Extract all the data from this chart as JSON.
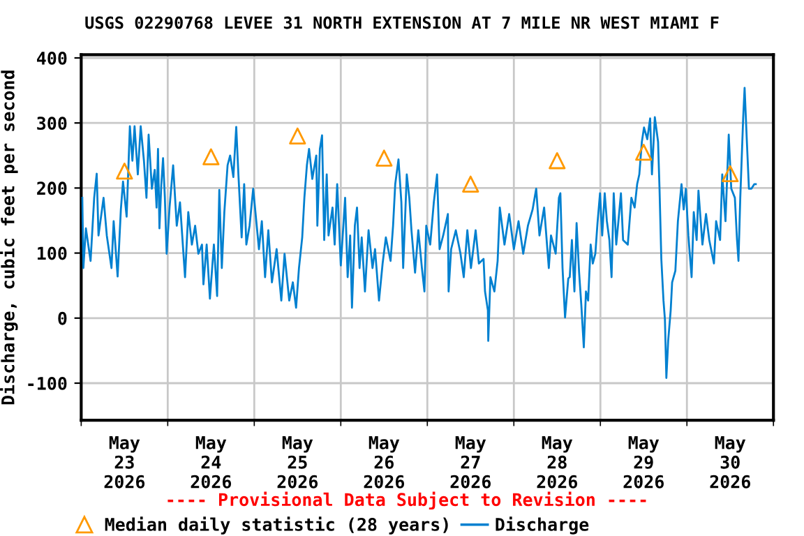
{
  "chart_data": {
    "type": "line",
    "title": "USGS 02290768 LEVEE 31 NORTH EXTENSION AT 7 MILE NR WEST MIAMI F",
    "ylabel": "Discharge, cubic feet per second",
    "annotations": [
      "---- Provisional Data Subject to Revision ----"
    ],
    "xlim": [
      "2026-05-23",
      "2026-05-31"
    ],
    "ylim": [
      -157,
      405
    ],
    "yticks": [
      -100,
      0,
      100,
      200,
      300,
      400
    ],
    "xticks": [
      {
        "value": "2026-05-23",
        "label": null
      },
      {
        "value": "2026-05-23T12:00",
        "label": "May\n23\n2026"
      },
      {
        "value": "2026-05-24",
        "label": null
      },
      {
        "value": "2026-05-24T12:00",
        "label": "May\n24\n2026"
      },
      {
        "value": "2026-05-25",
        "label": null
      },
      {
        "value": "2026-05-25T12:00",
        "label": "May\n25\n2026"
      },
      {
        "value": "2026-05-26",
        "label": null
      },
      {
        "value": "2026-05-26T12:00",
        "label": "May\n26\n2026"
      },
      {
        "value": "2026-05-27",
        "label": null
      },
      {
        "value": "2026-05-27T12:00",
        "label": "May\n27\n2026"
      },
      {
        "value": "2026-05-28",
        "label": null
      },
      {
        "value": "2026-05-28T12:00",
        "label": "May\n28\n2026"
      },
      {
        "value": "2026-05-29",
        "label": null
      },
      {
        "value": "2026-05-29T12:00",
        "label": "May\n29\n2026"
      },
      {
        "value": "2026-05-30",
        "label": null
      },
      {
        "value": "2026-05-30T12:00",
        "label": "May\n30\n2026"
      },
      {
        "value": "2026-05-31",
        "label": null
      }
    ],
    "grid": true,
    "legend": "bottom",
    "series": [
      {
        "name": "Median daily statistic (28 years)",
        "type": "scatter",
        "marker": "triangle",
        "color": "#ff9900",
        "x": [
          "2026-05-23T12:00",
          "2026-05-24T12:00",
          "2026-05-25T12:00",
          "2026-05-26T12:00",
          "2026-05-27T12:00",
          "2026-05-28T12:00",
          "2026-05-29T12:00",
          "2026-05-30T12:00"
        ],
        "values": [
          226,
          248,
          280,
          246,
          206,
          242,
          255,
          222
        ]
      },
      {
        "name": "Discharge",
        "color": "#0080d0",
        "x": [
          "2026-05-23T00:18",
          "2026-05-23T00:36",
          "2026-05-23T01:18",
          "2026-05-23T02:36",
          "2026-05-23T03:36",
          "2026-05-23T04:18",
          "2026-05-23T04:48",
          "2026-05-23T06:12",
          "2026-05-23T07:06",
          "2026-05-23T08:24",
          "2026-05-23T09:00",
          "2026-05-23T10:06",
          "2026-05-23T11:00",
          "2026-05-23T11:36",
          "2026-05-23T12:36",
          "2026-05-23T13:30",
          "2026-05-23T14:12",
          "2026-05-23T14:48",
          "2026-05-23T15:42",
          "2026-05-23T16:30",
          "2026-05-23T17:24",
          "2026-05-23T18:06",
          "2026-05-23T18:42",
          "2026-05-23T19:36",
          "2026-05-23T20:24",
          "2026-05-23T20:54",
          "2026-05-23T21:18",
          "2026-05-23T21:42",
          "2026-05-23T22:12",
          "2026-05-23T22:42",
          "2026-05-23T23:12",
          "2026-05-23T23:42",
          "2026-05-24T00:30",
          "2026-05-24T01:30",
          "2026-05-24T02:30",
          "2026-05-24T03:24",
          "2026-05-24T04:06",
          "2026-05-24T04:48",
          "2026-05-24T05:42",
          "2026-05-24T06:42",
          "2026-05-24T07:36",
          "2026-05-24T08:30",
          "2026-05-24T09:30",
          "2026-05-24T09:54",
          "2026-05-24T10:48",
          "2026-05-24T11:42",
          "2026-05-24T12:48",
          "2026-05-24T13:42",
          "2026-05-24T14:18",
          "2026-05-24T15:00",
          "2026-05-24T15:42",
          "2026-05-24T16:36",
          "2026-05-24T17:18",
          "2026-05-24T18:12",
          "2026-05-24T19:00",
          "2026-05-24T19:36",
          "2026-05-24T20:30",
          "2026-05-24T21:12",
          "2026-05-24T21:48",
          "2026-05-24T22:42",
          "2026-05-24T23:42",
          "2026-05-25T01:18",
          "2026-05-25T02:06",
          "2026-05-25T03:00",
          "2026-05-25T03:54",
          "2026-05-25T04:54",
          "2026-05-25T06:12",
          "2026-05-25T07:30",
          "2026-05-25T08:24",
          "2026-05-25T09:42",
          "2026-05-25T10:42",
          "2026-05-25T11:36",
          "2026-05-25T12:24",
          "2026-05-25T13:18",
          "2026-05-25T13:54",
          "2026-05-25T14:36",
          "2026-05-25T15:12",
          "2026-05-25T16:06",
          "2026-05-25T17:12",
          "2026-05-25T17:30",
          "2026-05-25T18:12",
          "2026-05-25T18:48",
          "2026-05-25T19:24",
          "2026-05-25T20:06",
          "2026-05-25T20:36",
          "2026-05-25T21:42",
          "2026-05-25T22:18",
          "2026-05-25T23:00",
          "2026-05-26T00:00",
          "2026-05-26T01:12",
          "2026-05-26T01:54",
          "2026-05-26T02:36",
          "2026-05-26T03:06",
          "2026-05-26T03:54",
          "2026-05-26T04:30",
          "2026-05-26T05:12",
          "2026-05-26T05:48",
          "2026-05-26T06:42",
          "2026-05-26T07:42",
          "2026-05-26T08:48",
          "2026-05-26T09:30",
          "2026-05-26T10:36",
          "2026-05-26T11:36",
          "2026-05-26T12:30",
          "2026-05-26T13:48",
          "2026-05-26T14:30",
          "2026-05-26T15:06",
          "2026-05-26T16:00",
          "2026-05-26T16:48",
          "2026-05-26T17:18",
          "2026-05-26T18:18",
          "2026-05-26T19:00",
          "2026-05-26T19:36",
          "2026-05-26T20:36",
          "2026-05-26T21:30",
          "2026-05-26T22:30",
          "2026-05-26T23:12",
          "2026-05-26T23:42",
          "2026-05-27T00:48",
          "2026-05-27T01:48",
          "2026-05-27T02:42",
          "2026-05-27T03:24",
          "2026-05-27T04:24",
          "2026-05-27T05:42",
          "2026-05-27T05:54",
          "2026-05-27T06:36",
          "2026-05-27T07:54",
          "2026-05-27T09:12",
          "2026-05-27T10:06",
          "2026-05-27T11:06",
          "2026-05-27T12:06",
          "2026-05-27T13:24",
          "2026-05-27T14:18",
          "2026-05-27T15:36",
          "2026-05-27T16:00",
          "2026-05-27T16:48",
          "2026-05-27T16:54",
          "2026-05-27T17:30",
          "2026-05-27T18:36",
          "2026-05-27T19:30",
          "2026-05-27T20:06",
          "2026-05-27T21:24",
          "2026-05-27T22:42",
          "2026-05-28T00:00",
          "2026-05-28T01:18",
          "2026-05-28T02:36",
          "2026-05-28T03:54",
          "2026-05-28T05:12",
          "2026-05-28T06:12",
          "2026-05-28T07:06",
          "2026-05-28T08:24",
          "2026-05-28T09:42",
          "2026-05-28T10:18",
          "2026-05-28T11:36",
          "2026-05-28T12:30",
          "2026-05-28T12:54",
          "2026-05-28T13:30",
          "2026-05-28T14:12",
          "2026-05-28T15:06",
          "2026-05-28T15:30",
          "2026-05-28T16:06",
          "2026-05-28T16:48",
          "2026-05-28T17:24",
          "2026-05-28T18:06",
          "2026-05-28T18:42",
          "2026-05-28T19:24",
          "2026-05-28T20:00",
          "2026-05-28T20:36",
          "2026-05-28T21:18",
          "2026-05-28T21:54",
          "2026-05-28T22:36",
          "2026-05-28T23:12",
          "2026-05-28T23:54",
          "2026-05-29T00:30",
          "2026-05-29T01:12",
          "2026-05-29T01:48",
          "2026-05-29T02:30",
          "2026-05-29T03:06",
          "2026-05-29T03:42",
          "2026-05-29T04:24",
          "2026-05-29T05:00",
          "2026-05-29T05:42",
          "2026-05-29T06:18",
          "2026-05-29T07:36",
          "2026-05-29T08:36",
          "2026-05-29T09:30",
          "2026-05-29T10:12",
          "2026-05-29T10:48",
          "2026-05-29T11:30",
          "2026-05-29T12:06",
          "2026-05-29T13:00",
          "2026-05-29T13:48",
          "2026-05-29T14:18",
          "2026-05-29T15:06",
          "2026-05-29T16:00",
          "2026-05-29T16:24",
          "2026-05-29T16:54",
          "2026-05-29T17:30",
          "2026-05-29T17:54",
          "2026-05-29T18:18",
          "2026-05-29T18:48",
          "2026-05-29T19:30",
          "2026-05-29T19:54",
          "2026-05-29T20:48",
          "2026-05-29T21:30",
          "2026-05-29T22:30",
          "2026-05-29T23:06",
          "2026-05-29T23:42",
          "2026-05-30T00:24",
          "2026-05-30T01:18",
          "2026-05-30T01:54",
          "2026-05-30T02:42",
          "2026-05-30T03:12",
          "2026-05-30T04:18",
          "2026-05-30T05:18",
          "2026-05-30T06:12",
          "2026-05-30T07:30",
          "2026-05-30T08:06",
          "2026-05-30T09:12",
          "2026-05-30T09:48",
          "2026-05-30T10:42",
          "2026-05-30T11:36",
          "2026-05-30T12:18",
          "2026-05-30T13:18",
          "2026-05-30T13:54",
          "2026-05-30T14:18",
          "2026-05-30T14:48",
          "2026-05-30T15:36",
          "2026-05-30T16:00",
          "2026-05-30T16:36",
          "2026-05-30T17:12",
          "2026-05-30T17:54",
          "2026-05-30T18:42",
          "2026-05-30T19:06"
        ],
        "values": [
          185,
          77,
          138,
          88,
          185,
          222,
          127,
          185,
          127,
          77,
          149,
          64,
          167,
          210,
          156,
          295,
          242,
          295,
          221,
          295,
          242,
          185,
          282,
          199,
          228,
          170,
          260,
          138,
          203,
          246,
          186,
          99,
          170,
          235,
          142,
          178,
          120,
          63,
          163,
          113,
          142,
          99,
          113,
          52,
          113,
          30,
          113,
          34,
          197,
          77,
          163,
          235,
          250,
          217,
          294,
          221,
          124,
          206,
          113,
          142,
          199,
          106,
          149,
          63,
          135,
          55,
          106,
          27,
          99,
          27,
          55,
          16,
          77,
          124,
          185,
          235,
          260,
          214,
          250,
          142,
          260,
          281,
          120,
          221,
          127,
          170,
          113,
          206,
          81,
          185,
          63,
          127,
          16,
          142,
          170,
          77,
          124,
          41,
          135,
          77,
          106,
          27,
          84,
          124,
          88,
          142,
          206,
          244,
          178,
          77,
          221,
          185,
          135,
          70,
          135,
          77,
          41,
          142,
          113,
          178,
          221,
          106,
          127,
          160,
          41,
          106,
          135,
          99,
          63,
          135,
          77,
          135,
          84,
          91,
          41,
          12,
          -35,
          63,
          41,
          88,
          170,
          113,
          160,
          106,
          149,
          99,
          142,
          167,
          199,
          127,
          170,
          77,
          127,
          99,
          185,
          192,
          77,
          1,
          61,
          63,
          120,
          41,
          146,
          70,
          21,
          -45,
          41,
          27,
          113,
          84,
          99,
          146,
          192,
          127,
          192,
          149,
          120,
          63,
          192,
          113,
          149,
          192,
          120,
          113,
          185,
          170,
          206,
          221,
          271,
          293,
          275,
          307,
          221,
          309,
          271,
          199,
          91,
          27,
          -2,
          -92,
          -35,
          12,
          55,
          73,
          149,
          206,
          167,
          199,
          127,
          63,
          163,
          120,
          196,
          113,
          160,
          120,
          84,
          149,
          120,
          221,
          149,
          282,
          199,
          185,
          120,
          88,
          185,
          307,
          354,
          275,
          199,
          199,
          206,
          206
        ]
      }
    ]
  }
}
